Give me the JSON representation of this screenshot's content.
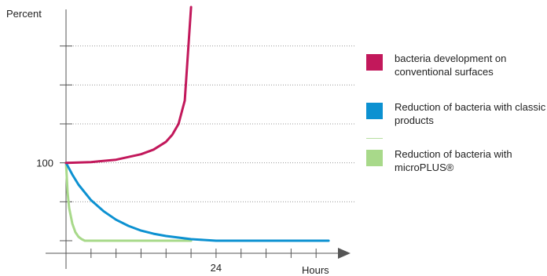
{
  "chart_data": {
    "type": "line",
    "ylabel": "Percent",
    "xlabel": "Hours",
    "y_tick_labels": [
      {
        "value": 100,
        "label": "100"
      }
    ],
    "x_tick_labels": [
      {
        "value": 24,
        "label": "24"
      }
    ],
    "xlim": [
      0,
      44
    ],
    "ylim": [
      0,
      300
    ],
    "grid": true,
    "legend_position": "right",
    "series": [
      {
        "name": "bacteria development on conventional surfaces",
        "color": "#c2185b",
        "x": [
          0,
          4,
          8,
          12,
          14,
          16,
          17,
          18,
          19,
          20
        ],
        "y": [
          100,
          101,
          104,
          111,
          117,
          127,
          136,
          150,
          180,
          300
        ]
      },
      {
        "name": "Reduction of bacteria with classic products",
        "color": "#0c91d1",
        "x": [
          0,
          1,
          2,
          4,
          6,
          8,
          10,
          12,
          14,
          16,
          18,
          20,
          22,
          24,
          30,
          36,
          42
        ],
        "y": [
          100,
          85,
          72,
          52,
          38,
          27,
          19,
          13,
          9,
          6,
          4,
          2,
          1,
          0,
          0,
          0,
          0
        ]
      },
      {
        "name": "Reduction of bacteria with microPLUS®",
        "color": "#a8d98a",
        "x": [
          0,
          0.25,
          0.5,
          1,
          1.5,
          2,
          2.5,
          3,
          10,
          20
        ],
        "y": [
          100,
          62,
          42,
          22,
          11,
          5,
          2,
          0,
          0,
          0
        ]
      }
    ]
  },
  "legend": {
    "items": [
      {
        "label": "bacteria development on conventional surfaces",
        "color": "#c2185b"
      },
      {
        "label": "Reduction of bacteria with classic products",
        "color": "#0c91d1"
      },
      {
        "label": "Reduction of bacteria with microPLUS®",
        "color": "#a8d98a"
      }
    ]
  }
}
